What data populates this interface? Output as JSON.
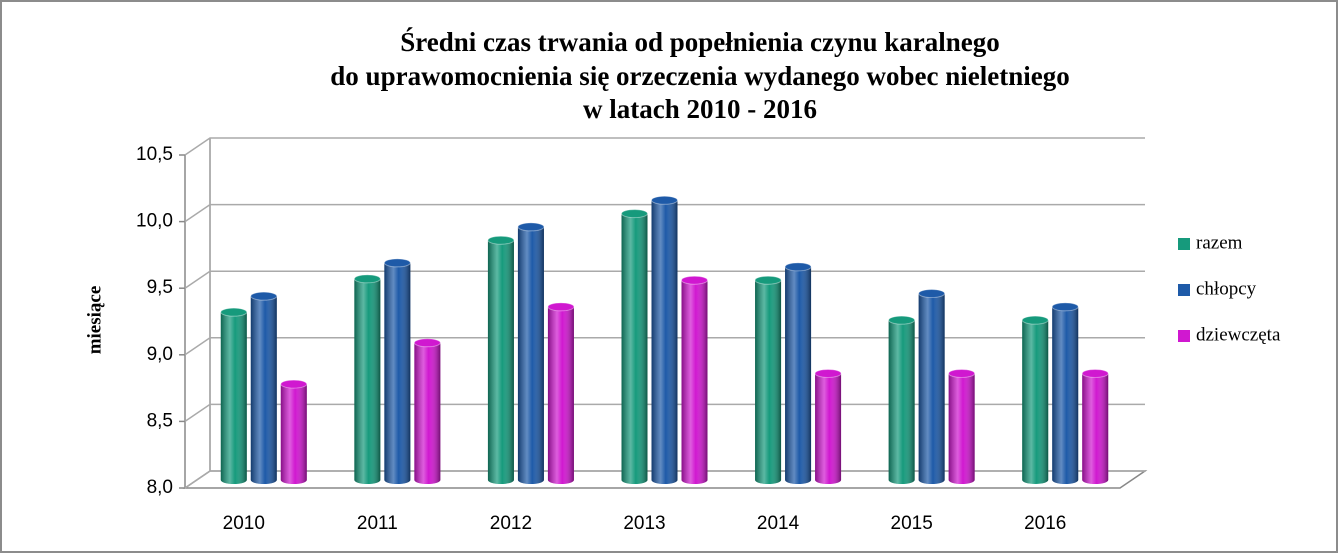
{
  "chart_data": {
    "type": "bar",
    "title": [
      "Średni czas trwania od popełnienia czynu karalnego",
      "do uprawomocnienia się orzeczenia wydanego wobec nieletniego",
      "w latach 2010 - 2016"
    ],
    "y_label": "miesiące",
    "categories": [
      "2010",
      "2011",
      "2012",
      "2013",
      "2014",
      "2015",
      "2016"
    ],
    "series": [
      {
        "name": "razem",
        "color": "#169a7c",
        "values": [
          9.26,
          9.51,
          9.8,
          10.0,
          9.5,
          9.2,
          9.2
        ]
      },
      {
        "name": "chłopcy",
        "color": "#1e5aa8",
        "values": [
          9.38,
          9.63,
          9.9,
          10.1,
          9.6,
          9.4,
          9.3
        ]
      },
      {
        "name": "dziewczęta",
        "color": "#d018d0",
        "values": [
          8.72,
          9.03,
          9.3,
          9.5,
          8.8,
          8.8,
          8.8
        ]
      }
    ],
    "ylim": [
      8,
      10.5
    ],
    "yticks": [
      {
        "value": 8,
        "label": "8,0"
      },
      {
        "value": 8.5,
        "label": "8,5"
      },
      {
        "value": 9,
        "label": "9,0"
      },
      {
        "value": 9.5,
        "label": "9,5"
      },
      {
        "value": 10,
        "label": "10,0"
      },
      {
        "value": 10.5,
        "label": "10,5"
      }
    ],
    "grid": true,
    "legend": "right"
  }
}
